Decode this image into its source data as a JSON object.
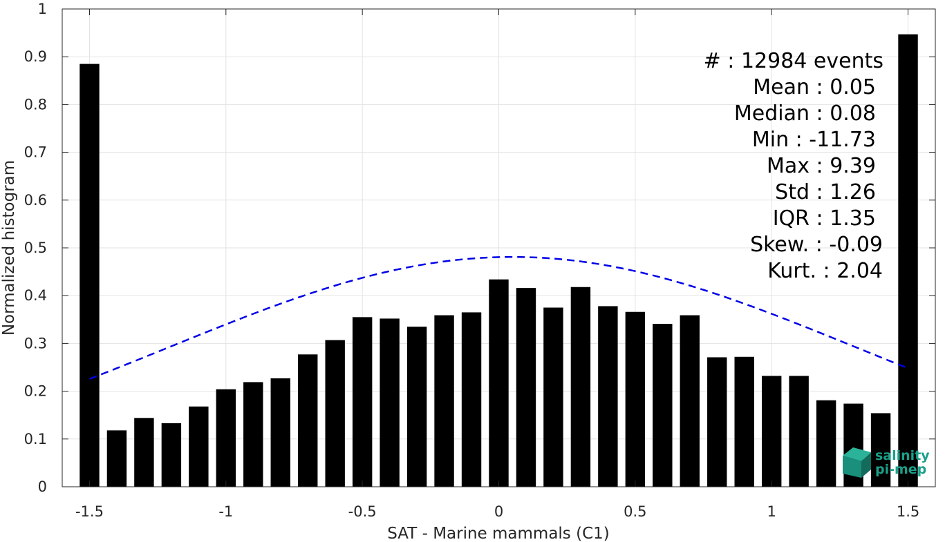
{
  "chart_data": {
    "type": "bar",
    "xlabel": "SAT - Marine mammals (C1)",
    "ylabel": "Normalized histogram",
    "xlim": [
      -1.6,
      1.6
    ],
    "ylim": [
      0,
      1
    ],
    "xticks": [
      -1.5,
      -1,
      -0.5,
      0,
      0.5,
      1,
      1.5
    ],
    "xtick_labels": [
      "-1.5",
      "-1",
      "-0.5",
      "0",
      "0.5",
      "1",
      "1.5"
    ],
    "yticks": [
      0,
      0.1,
      0.2,
      0.3,
      0.4,
      0.5,
      0.6,
      0.7,
      0.8,
      0.9,
      1
    ],
    "ytick_labels": [
      "0",
      "0.1",
      "0.2",
      "0.3",
      "0.4",
      "0.5",
      "0.6",
      "0.7",
      "0.8",
      "0.9",
      "1"
    ],
    "grid": true,
    "bar_color": "#000000",
    "bars": {
      "x": [
        -1.5,
        -1.4,
        -1.3,
        -1.2,
        -1.1,
        -1.0,
        -0.9,
        -0.8,
        -0.7,
        -0.6,
        -0.5,
        -0.4,
        -0.3,
        -0.2,
        -0.1,
        0.0,
        0.1,
        0.2,
        0.3,
        0.4,
        0.5,
        0.6,
        0.7,
        0.8,
        0.9,
        1.0,
        1.1,
        1.2,
        1.3,
        1.4,
        1.5
      ],
      "values": [
        0.885,
        0.118,
        0.144,
        0.133,
        0.168,
        0.204,
        0.219,
        0.227,
        0.277,
        0.307,
        0.355,
        0.352,
        0.335,
        0.359,
        0.365,
        0.434,
        0.416,
        0.375,
        0.418,
        0.378,
        0.366,
        0.341,
        0.359,
        0.271,
        0.272,
        0.232,
        0.232,
        0.181,
        0.174,
        0.154,
        0.947
      ]
    },
    "fit_curve": {
      "type": "normal",
      "mean": 0.05,
      "std": 1.26,
      "peak": 0.481,
      "x_range": [
        -1.5,
        1.5
      ],
      "color": "#0000e6",
      "style": "dashed"
    },
    "stats": [
      "#  : 12984 events",
      "Mean : 0.05",
      "Median : 0.08",
      "Min : -11.73",
      "Max : 9.39",
      "Std : 1.26",
      "IQR : 1.35",
      "Skew. : -0.09",
      "Kurt. : 2.04"
    ],
    "logo": {
      "line1": "salinity",
      "line2": "pi-mep",
      "color": "#1aa08a"
    }
  }
}
